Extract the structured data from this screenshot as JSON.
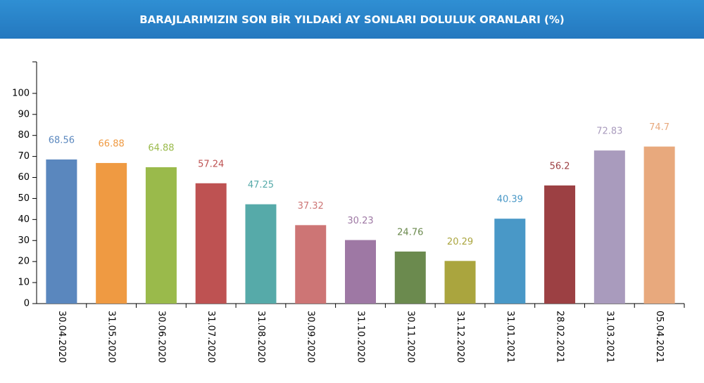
{
  "chart_data": {
    "type": "bar",
    "title": "BARAJLARIMIZIN SON BİR YILDAKİ AY SONLARI DOLULUK ORANLARI (%)",
    "categories": [
      "30.04.2020",
      "31.05.2020",
      "30.06.2020",
      "31.07.2020",
      "31.08.2020",
      "30.09.2020",
      "31.10.2020",
      "30.11.2020",
      "31.12.2020",
      "31.01.2021",
      "28.02.2021",
      "31.03.2021",
      "05.04.2021"
    ],
    "values": [
      68.56,
      66.88,
      64.88,
      57.24,
      47.25,
      37.32,
      30.23,
      24.76,
      20.29,
      40.39,
      56.2,
      72.83,
      74.7
    ],
    "colors": [
      "#5a87be",
      "#ef9a42",
      "#9aba4b",
      "#be5252",
      "#56aaa9",
      "#cd7575",
      "#9e78a4",
      "#6b8a4e",
      "#aaa53e",
      "#4998c7",
      "#9c4043",
      "#a99bbd",
      "#e8a97d"
    ],
    "ylim": [
      0,
      115
    ],
    "yticks": [
      0,
      10,
      20,
      30,
      40,
      50,
      60,
      70,
      80,
      90,
      100
    ]
  }
}
